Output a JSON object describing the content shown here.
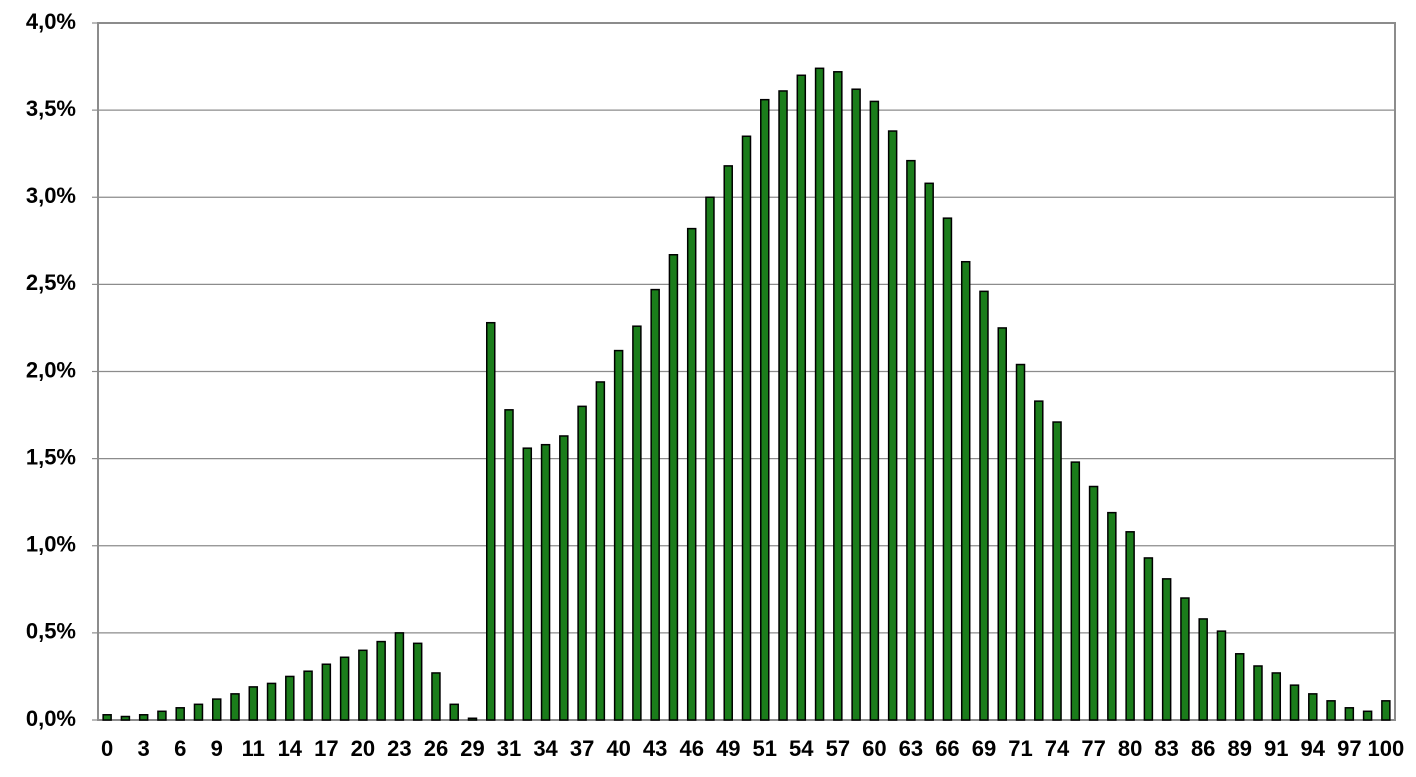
{
  "chart_data": {
    "type": "bar",
    "categories": [
      "0",
      null,
      "3",
      null,
      "6",
      null,
      "9",
      null,
      "11",
      null,
      "14",
      null,
      "17",
      null,
      "20",
      null,
      "23",
      null,
      "26",
      null,
      "29",
      null,
      "31",
      null,
      "34",
      null,
      "37",
      null,
      "40",
      null,
      "43",
      null,
      "46",
      null,
      "49",
      null,
      "51",
      null,
      "54",
      null,
      "57",
      null,
      "60",
      null,
      "63",
      null,
      "66",
      null,
      "69",
      null,
      "71",
      null,
      "74",
      null,
      "77",
      null,
      "80",
      null,
      "83",
      null,
      "86",
      null,
      "89",
      null,
      "91",
      null,
      "94",
      null,
      "97",
      null,
      "100"
    ],
    "values": [
      0.03,
      0.02,
      0.03,
      0.05,
      0.07,
      0.09,
      0.12,
      0.15,
      0.19,
      0.21,
      0.25,
      0.28,
      0.32,
      0.36,
      0.4,
      0.45,
      0.5,
      0.44,
      0.27,
      0.09,
      0.01,
      2.28,
      1.78,
      1.56,
      1.58,
      1.63,
      1.8,
      1.94,
      2.12,
      2.26,
      2.47,
      2.67,
      2.82,
      3.0,
      3.18,
      3.35,
      3.56,
      3.61,
      3.7,
      3.74,
      3.72,
      3.62,
      3.55,
      3.38,
      3.21,
      3.08,
      2.88,
      2.63,
      2.46,
      2.25,
      2.04,
      1.83,
      1.71,
      1.48,
      1.34,
      1.19,
      1.08,
      0.93,
      0.81,
      0.7,
      0.58,
      0.51,
      0.38,
      0.31,
      0.27,
      0.2,
      0.15,
      0.11,
      0.07,
      0.05,
      0.11
    ],
    "color": "#1b7d1b",
    "ylim": [
      0,
      4
    ],
    "yticks": [
      {
        "value": 0,
        "label": "0,0%"
      },
      {
        "value": 0.5,
        "label": "0,5%"
      },
      {
        "value": 1,
        "label": "1,0%"
      },
      {
        "value": 1.5,
        "label": "1,5%"
      },
      {
        "value": 2,
        "label": "2,0%"
      },
      {
        "value": 2.5,
        "label": "2,5%"
      },
      {
        "value": 3,
        "label": "3,0%"
      },
      {
        "value": 3.5,
        "label": "3,5%"
      },
      {
        "value": 4,
        "label": "4,0%"
      }
    ],
    "grid": true
  }
}
